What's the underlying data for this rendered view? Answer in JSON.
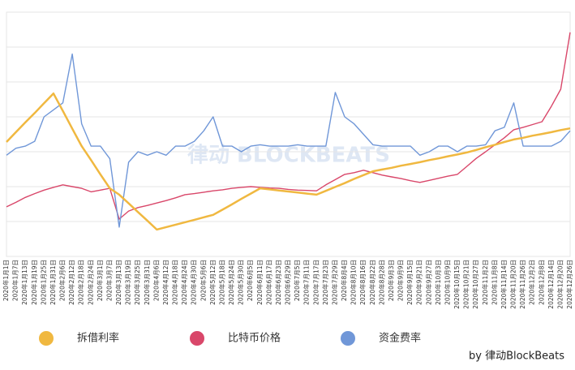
{
  "chart_data": {
    "type": "line",
    "categories": [
      "2020年1月1日",
      "2020年1月7日",
      "2020年1月13日",
      "2020年1月19日",
      "2020年1月25日",
      "2020年1月31日",
      "2020年2月6日",
      "2020年2月12日",
      "2020年2月18日",
      "2020年2月24日",
      "2020年3月1日",
      "2020年3月7日",
      "2020年3月13日",
      "2020年3月19日",
      "2020年3月25日",
      "2020年3月31日",
      "2020年4月6日",
      "2020年4月12日",
      "2020年4月18日",
      "2020年4月24日",
      "2020年4月30日",
      "2020年5月6日",
      "2020年5月12日",
      "2020年5月18日",
      "2020年5月24日",
      "2020年5月30日",
      "2020年6月5日",
      "2020年6月11日",
      "2020年6月17日",
      "2020年6月23日",
      "2020年6月29日",
      "2020年7月5日",
      "2020年7月11日",
      "2020年7月17日",
      "2020年7月23日",
      "2020年7月29日",
      "2020年8月4日",
      "2020年8月10日",
      "2020年8月16日",
      "2020年8月22日",
      "2020年8月28日",
      "2020年9月3日",
      "2020年9月9日",
      "2020年9月15日",
      "2020年9月21日",
      "2020年9月27日",
      "2020年10月3日",
      "2020年10月9日",
      "2020年10月15日",
      "2020年10月21日",
      "2020年10月27日",
      "2020年11月2日",
      "2020年11月8日",
      "2020年11月14日",
      "2020年11月20日",
      "2020年11月26日",
      "2020年12月2日",
      "2020年12月8日",
      "2020年12月14日",
      "2020年12月20日",
      "2020年12月26日"
    ],
    "series": [
      {
        "name": "拆借利率",
        "color": "#f0b840",
        "values": [
          32.8,
          35.6,
          38.4,
          41.1,
          43.9,
          46.7,
          41.7,
          36.6,
          31.6,
          27.6,
          23.5,
          19.5,
          17.7,
          15.2,
          12.7,
          10.2,
          7.7,
          8.4,
          9.1,
          9.8,
          10.5,
          11.2,
          11.9,
          13.4,
          14.9,
          16.5,
          18.0,
          19.5,
          19.2,
          18.9,
          18.6,
          18.3,
          18.0,
          17.7,
          18.8,
          19.9,
          21.0,
          22.2,
          23.3,
          24.4,
          24.9,
          25.4,
          26.0,
          26.5,
          27.0,
          27.6,
          28.1,
          28.7,
          29.2,
          29.8,
          30.5,
          31.3,
          32.0,
          32.8,
          33.5,
          34.0,
          34.6,
          35.1,
          35.6,
          36.2,
          36.7
        ]
      },
      {
        "name": "比特币价格",
        "color": "#d9476a",
        "values": [
          14.2,
          15.5,
          16.9,
          18.0,
          19.0,
          19.8,
          20.5,
          20.0,
          19.5,
          18.5,
          19.0,
          19.5,
          10.7,
          13.0,
          14.0,
          14.6,
          15.3,
          16.0,
          16.8,
          17.7,
          18.0,
          18.4,
          18.8,
          19.1,
          19.5,
          19.8,
          20.0,
          19.8,
          19.6,
          19.5,
          19.2,
          19.0,
          18.9,
          18.8,
          20.5,
          22.0,
          23.5,
          24.0,
          24.7,
          24.0,
          23.3,
          22.8,
          22.3,
          21.7,
          21.2,
          21.8,
          22.4,
          23.0,
          23.5,
          25.8,
          28.1,
          30.0,
          32.0,
          34.0,
          36.3,
          37.0,
          37.8,
          38.6,
          43.0,
          47.9,
          64.2
        ]
      },
      {
        "name": "资金费率",
        "color": "#7097d8",
        "values": [
          29,
          31,
          31.6,
          33,
          40,
          42,
          44,
          58,
          38,
          31.6,
          31.6,
          28,
          8.4,
          27,
          30,
          29,
          30,
          29,
          31.6,
          31.6,
          33,
          36,
          40,
          31.6,
          31.6,
          30,
          31.6,
          32,
          31.6,
          31.6,
          31.6,
          32,
          31.6,
          31.6,
          31.6,
          47,
          40,
          38,
          35,
          32,
          31.6,
          31.6,
          31.6,
          31.6,
          29,
          30,
          31.6,
          31.6,
          30,
          31.6,
          31.6,
          32,
          36,
          37,
          44,
          31.6,
          31.6,
          31.6,
          31.6,
          33,
          36
        ]
      }
    ],
    "ylim": [
      0,
      70
    ],
    "gridlines": [
      0,
      10,
      20,
      30,
      40,
      50,
      60,
      70
    ],
    "watermark": "律动 BLOCKBEATS",
    "credit": "by 律动BlockBeats"
  }
}
